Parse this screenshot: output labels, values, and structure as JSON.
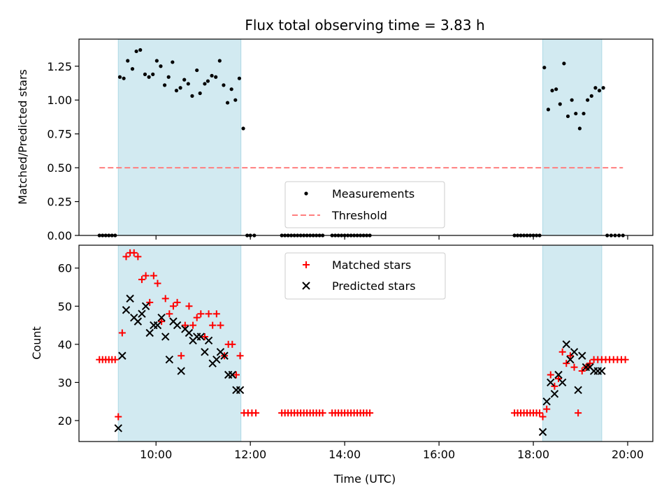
{
  "chart_data": [
    {
      "type": "scatter",
      "title": "Flux total observing time = 3.83 h",
      "xlabel": "",
      "ylabel": "Matched/Predicted stars",
      "xlim": [
        "08:22",
        "20:32"
      ],
      "ylim": [
        0,
        1.45
      ],
      "yticks": [
        "0.00",
        "0.25",
        "0.50",
        "0.75",
        "1.00",
        "1.25"
      ],
      "xticks": [
        "10:00",
        "12:00",
        "14:00",
        "16:00",
        "18:00",
        "20:00"
      ],
      "shaded_regions": [
        [
          "09:12",
          "11:48"
        ],
        [
          "18:12",
          "19:27"
        ]
      ],
      "legend": {
        "position": "lower-center",
        "entries": [
          "Measurements",
          "Threshold"
        ]
      },
      "threshold": {
        "name": "Threshold",
        "value": 0.5,
        "x_range": [
          "08:48",
          "19:54"
        ],
        "color": "#ff7f7f"
      },
      "series": [
        {
          "name": "Measurements",
          "color": "#000000",
          "x": [
            "08:48",
            "08:52",
            "08:56",
            "09:00",
            "09:04",
            "09:08",
            "09:14",
            "09:19",
            "09:24",
            "09:30",
            "09:35",
            "09:40",
            "09:46",
            "09:51",
            "09:56",
            "10:01",
            "10:06",
            "10:11",
            "10:16",
            "10:21",
            "10:26",
            "10:31",
            "10:36",
            "10:41",
            "10:46",
            "10:52",
            "10:56",
            "11:02",
            "11:06",
            "11:11",
            "11:16",
            "11:21",
            "11:26",
            "11:31",
            "11:36",
            "11:41",
            "11:46",
            "11:51",
            "11:56",
            "12:00",
            "12:05",
            "12:40",
            "12:44",
            "12:48",
            "12:52",
            "12:56",
            "13:00",
            "13:04",
            "13:08",
            "13:12",
            "13:16",
            "13:20",
            "13:24",
            "13:28",
            "13:32",
            "13:44",
            "13:48",
            "13:52",
            "13:56",
            "14:00",
            "14:04",
            "14:08",
            "14:12",
            "14:16",
            "14:20",
            "14:24",
            "14:28",
            "14:32",
            "17:36",
            "17:40",
            "17:44",
            "17:48",
            "17:52",
            "17:56",
            "18:00",
            "18:04",
            "18:08",
            "18:14",
            "18:19",
            "18:24",
            "18:29",
            "18:34",
            "18:39",
            "18:44",
            "18:49",
            "18:54",
            "18:59",
            "19:04",
            "19:09",
            "19:14",
            "19:19",
            "19:24",
            "19:29",
            "19:34",
            "19:39",
            "19:44",
            "19:49",
            "19:54"
          ],
          "y": [
            0,
            0,
            0,
            0,
            0,
            0,
            1.17,
            1.16,
            1.29,
            1.23,
            1.36,
            1.37,
            1.19,
            1.17,
            1.19,
            1.29,
            1.25,
            1.11,
            1.17,
            1.28,
            1.07,
            1.09,
            1.15,
            1.12,
            1.03,
            1.22,
            1.05,
            1.12,
            1.14,
            1.18,
            1.17,
            1.29,
            1.11,
            0.98,
            1.08,
            1.0,
            1.16,
            0.79,
            0,
            0,
            0,
            0,
            0,
            0,
            0,
            0,
            0,
            0,
            0,
            0,
            0,
            0,
            0,
            0,
            0,
            0,
            0,
            0,
            0,
            0,
            0,
            0,
            0,
            0,
            0,
            0,
            0,
            0,
            0,
            0,
            0,
            0,
            0,
            0,
            0,
            0,
            0,
            1.24,
            0.93,
            1.07,
            1.08,
            0.97,
            1.27,
            0.88,
            1.0,
            0.9,
            0.79,
            0.9,
            1.0,
            1.03,
            1.09,
            1.07,
            1.09,
            0,
            0,
            0,
            0,
            0
          ]
        }
      ]
    },
    {
      "type": "scatter",
      "title": "",
      "xlabel": "Time (UTC)",
      "ylabel": "Count",
      "xlim": [
        "08:22",
        "20:32"
      ],
      "ylim": [
        14.5,
        66
      ],
      "yticks": [
        "20",
        "30",
        "40",
        "50",
        "60"
      ],
      "xticks": [
        "10:00",
        "12:00",
        "14:00",
        "16:00",
        "18:00",
        "20:00"
      ],
      "shaded_regions": [
        [
          "09:12",
          "11:48"
        ],
        [
          "18:12",
          "19:27"
        ]
      ],
      "legend": {
        "position": "upper-center",
        "entries": [
          "Matched stars",
          "Predicted stars"
        ]
      },
      "series": [
        {
          "name": "Matched stars",
          "marker": "plus",
          "color": "#ff0000",
          "x": [
            "08:48",
            "08:52",
            "08:56",
            "09:00",
            "09:04",
            "09:08",
            "09:12",
            "09:17",
            "09:22",
            "09:27",
            "09:32",
            "09:37",
            "09:42",
            "09:47",
            "09:52",
            "09:57",
            "10:02",
            "10:07",
            "10:12",
            "10:17",
            "10:22",
            "10:27",
            "10:32",
            "10:37",
            "10:42",
            "10:47",
            "10:52",
            "10:57",
            "11:02",
            "11:07",
            "11:12",
            "11:17",
            "11:22",
            "11:27",
            "11:32",
            "11:37",
            "11:42",
            "11:47",
            "11:52",
            "11:57",
            "12:02",
            "12:07",
            "12:40",
            "12:44",
            "12:48",
            "12:52",
            "12:56",
            "13:00",
            "13:04",
            "13:08",
            "13:12",
            "13:16",
            "13:20",
            "13:24",
            "13:28",
            "13:32",
            "13:44",
            "13:48",
            "13:52",
            "13:56",
            "14:00",
            "14:04",
            "14:08",
            "14:12",
            "14:16",
            "14:20",
            "14:24",
            "14:28",
            "14:32",
            "17:36",
            "17:40",
            "17:44",
            "17:48",
            "17:52",
            "17:56",
            "18:00",
            "18:04",
            "18:08",
            "18:12",
            "18:17",
            "18:22",
            "18:27",
            "18:32",
            "18:37",
            "18:42",
            "18:47",
            "18:52",
            "18:57",
            "19:02",
            "19:07",
            "19:12",
            "19:17",
            "19:22",
            "19:27",
            "19:32",
            "19:37",
            "19:42",
            "19:47",
            "19:52",
            "19:57"
          ],
          "y": [
            36,
            36,
            36,
            36,
            36,
            36,
            21,
            43,
            63,
            64,
            64,
            63,
            57,
            58,
            51,
            58,
            56,
            46,
            52,
            48,
            50,
            51,
            37,
            45,
            50,
            45,
            47,
            48,
            42,
            48,
            45,
            48,
            45,
            37,
            40,
            40,
            32,
            37,
            22,
            22,
            22,
            22,
            22,
            22,
            22,
            22,
            22,
            22,
            22,
            22,
            22,
            22,
            22,
            22,
            22,
            22,
            22,
            22,
            22,
            22,
            22,
            22,
            22,
            22,
            22,
            22,
            22,
            22,
            22,
            22,
            22,
            22,
            22,
            22,
            22,
            22,
            22,
            22,
            21,
            23,
            32,
            29,
            31,
            38,
            35,
            37,
            34,
            22,
            33,
            34,
            35,
            36,
            36,
            36,
            36,
            36,
            36,
            36,
            36,
            36
          ]
        },
        {
          "name": "Predicted stars",
          "marker": "x",
          "color": "#000000",
          "x": [
            "09:12",
            "09:17",
            "09:22",
            "09:27",
            "09:32",
            "09:37",
            "09:42",
            "09:47",
            "09:52",
            "09:57",
            "10:02",
            "10:07",
            "10:12",
            "10:17",
            "10:22",
            "10:27",
            "10:32",
            "10:37",
            "10:42",
            "10:47",
            "10:52",
            "10:57",
            "11:02",
            "11:07",
            "11:12",
            "11:17",
            "11:22",
            "11:27",
            "11:32",
            "11:37",
            "11:42",
            "11:47",
            "18:12",
            "18:17",
            "18:22",
            "18:27",
            "18:32",
            "18:37",
            "18:42",
            "18:47",
            "18:52",
            "18:57",
            "19:02",
            "19:07",
            "19:12",
            "19:17",
            "19:22",
            "19:27"
          ],
          "y": [
            18,
            37,
            49,
            52,
            47,
            46,
            48,
            50,
            43,
            45,
            45,
            47,
            42,
            36,
            46,
            45,
            33,
            44,
            43,
            41,
            42,
            42,
            38,
            41,
            35,
            36,
            38,
            37,
            32,
            32,
            28,
            28,
            17,
            25,
            30,
            27,
            32,
            30,
            40,
            36,
            38,
            28,
            37,
            34,
            34,
            33,
            33,
            33
          ]
        }
      ]
    }
  ]
}
